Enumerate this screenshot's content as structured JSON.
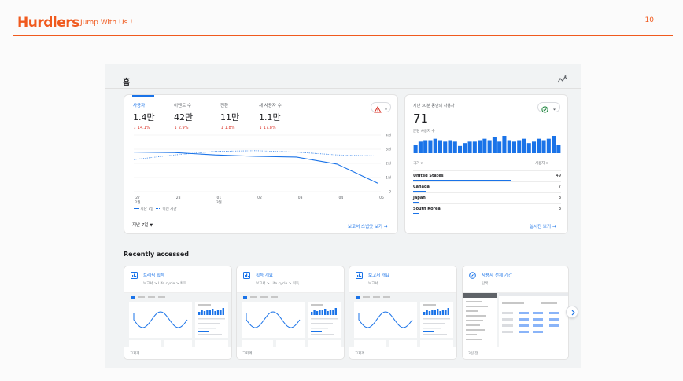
{
  "slide": {
    "brand": "Hurdlers",
    "tagline": "Jump With Us !",
    "page_number": "10"
  },
  "home": {
    "title": "홈"
  },
  "metrics": [
    {
      "label": "사용자",
      "value": "1.4만",
      "delta": "14.1%",
      "active": true
    },
    {
      "label": "이벤트 수",
      "value": "42만",
      "delta": "2.9%"
    },
    {
      "label": "전환",
      "value": "11만",
      "delta": "1.8%"
    },
    {
      "label": "새 사용자 수",
      "value": "1.1만",
      "delta": "17.8%"
    }
  ],
  "chart_data": {
    "type": "line",
    "x": [
      "27 2월",
      "28",
      "01 3월",
      "02",
      "03",
      "04",
      "05"
    ],
    "x_ticks": [
      "27",
      "28",
      "01",
      "02",
      "03",
      "04",
      "05"
    ],
    "x_sublabels": [
      "2월",
      "",
      "3월",
      "",
      "",
      "",
      ""
    ],
    "y_ticks": [
      "4천",
      "3천",
      "2천",
      "1천",
      "0"
    ],
    "ylim": [
      0,
      4000
    ],
    "series": [
      {
        "name": "지난 7일",
        "style": "solid",
        "values": [
          2800,
          2770,
          2600,
          2500,
          2450,
          1950,
          600
        ]
      },
      {
        "name": "이전 기간",
        "style": "dotted",
        "values": [
          2270,
          2600,
          2850,
          2900,
          2800,
          2600,
          2530
        ]
      }
    ],
    "legend_position": "bottom-left",
    "grid": true
  },
  "main_card": {
    "period_label": "지난 7일",
    "snapshot_link": "보고서 스냅샷 보기"
  },
  "realtime": {
    "title": "지난 30분 동안의 사용자",
    "value": "71",
    "subtitle": "분당 사용자 수",
    "bars": [
      6,
      8,
      9,
      9,
      10,
      9,
      8,
      9,
      8,
      5,
      7,
      8,
      8,
      9,
      10,
      9,
      11,
      8,
      12,
      9,
      8,
      9,
      10,
      7,
      8,
      10,
      9,
      10,
      12,
      6
    ],
    "col_country": "국가",
    "col_users": "사용자",
    "rows": [
      {
        "country": "United States",
        "users": "49",
        "fraction": 0.66
      },
      {
        "country": "Canada",
        "users": "7",
        "fraction": 0.09
      },
      {
        "country": "Japan",
        "users": "3",
        "fraction": 0.04
      },
      {
        "country": "South Korea",
        "users": "3",
        "fraction": 0.04
      }
    ],
    "link": "실시간 보기"
  },
  "recent": {
    "title": "Recently accessed",
    "cards": [
      {
        "title": "트래픽 획득",
        "path": "보고서 > Life cycle > 획득",
        "footer": "그저께"
      },
      {
        "title": "획득 개요",
        "path": "보고서 > Life cycle > 획득",
        "footer": "그저께"
      },
      {
        "title": "보고서 개요",
        "path": "보고서",
        "footer": "그저께"
      },
      {
        "title": "사용자 전체 기간",
        "path": "탐색",
        "footer": "3일 전"
      }
    ]
  },
  "colors": {
    "brand": "#f05a1e",
    "accent": "#1a73e8",
    "negative": "#d93025",
    "positive": "#188038"
  },
  "icons": [
    "insights-icon",
    "warning-icon",
    "check-circle-icon",
    "report-icon",
    "explore-icon",
    "chevron-right-icon",
    "dropdown-caret-icon",
    "arrow-right-icon"
  ]
}
